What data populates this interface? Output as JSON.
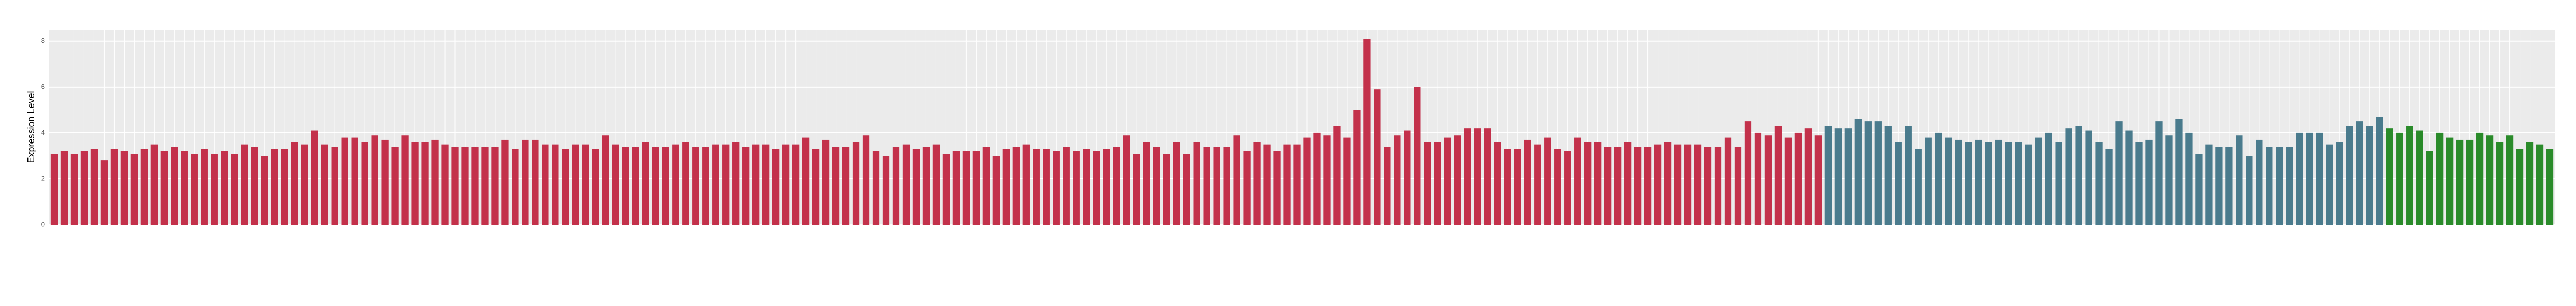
{
  "chart_data": {
    "type": "bar",
    "y_label": "Expression Level",
    "ylim": [
      0,
      8.5
    ],
    "yticks": [
      0,
      2,
      4,
      6,
      8
    ],
    "grid": true,
    "series": [
      {
        "color": "#c3314b",
        "values": [
          3.1,
          3.2,
          3.1,
          3.2,
          3.3,
          2.8,
          3.3,
          3.2,
          3.1,
          3.3,
          3.5,
          3.2,
          3.4,
          3.2,
          3.1,
          3.3,
          3.1,
          3.2,
          3.1,
          3.5,
          3.4,
          3.0,
          3.3,
          3.3,
          3.6,
          3.5,
          4.1,
          3.5,
          3.4,
          3.8,
          3.8,
          3.6,
          3.9,
          3.7,
          3.4,
          3.9,
          3.6,
          3.6,
          3.7,
          3.5,
          3.4,
          3.4,
          3.4,
          3.4,
          3.4,
          3.7,
          3.3,
          3.7,
          3.7,
          3.5,
          3.5,
          3.3,
          3.5,
          3.5,
          3.3,
          3.9,
          3.5,
          3.4,
          3.4,
          3.6,
          3.4,
          3.4,
          3.5,
          3.6,
          3.4,
          3.4,
          3.5,
          3.5,
          3.6,
          3.4,
          3.5,
          3.5,
          3.3,
          3.5,
          3.5,
          3.8,
          3.3,
          3.7,
          3.4,
          3.4,
          3.6,
          3.9,
          3.2,
          3.0,
          3.4,
          3.5,
          3.3,
          3.4,
          3.5,
          3.1,
          3.2,
          3.2,
          3.2,
          3.4,
          3.0,
          3.3,
          3.4,
          3.5,
          3.3,
          3.3,
          3.2,
          3.4,
          3.2,
          3.3,
          3.2,
          3.3,
          3.4,
          3.9,
          3.1,
          3.6,
          3.4,
          3.1,
          3.6,
          3.1,
          3.6,
          3.4,
          3.4,
          3.4,
          3.9,
          3.2,
          3.6,
          3.5,
          3.2,
          3.5,
          3.5,
          3.8,
          4.0,
          3.9,
          4.3,
          3.8,
          5.0,
          8.1,
          5.9,
          3.4,
          3.9,
          4.1,
          6.0,
          3.6,
          3.6,
          3.8,
          3.9,
          4.2,
          4.2,
          4.2,
          3.6,
          3.3,
          3.3,
          3.7,
          3.5,
          3.8,
          3.3,
          3.2,
          3.8,
          3.6,
          3.6,
          3.4,
          3.4,
          3.6,
          3.4,
          3.4,
          3.5,
          3.6,
          3.5,
          3.5,
          3.5,
          3.4,
          3.4,
          3.8,
          3.4,
          4.5,
          4.0,
          3.9,
          4.3,
          3.8,
          4.0,
          4.2,
          3.9
        ]
      },
      {
        "color": "#4a7b8d",
        "values": [
          4.3,
          4.2,
          4.2,
          4.6,
          4.5,
          4.5,
          4.3,
          3.6,
          4.3,
          3.3,
          3.8,
          4.0,
          3.8,
          3.7,
          3.6,
          3.7,
          3.6,
          3.7,
          3.6,
          3.6,
          3.5,
          3.8,
          4.0,
          3.6,
          4.2,
          4.3,
          4.1,
          3.6,
          3.3,
          4.5,
          4.1,
          3.6,
          3.7,
          4.5,
          3.9,
          4.6,
          4.0,
          3.1,
          3.5,
          3.4,
          3.4,
          3.9,
          3.0,
          3.7,
          3.4,
          3.4,
          3.4,
          4.0,
          4.0,
          4.0,
          3.5,
          3.6,
          4.3,
          4.5,
          4.3,
          4.7
        ]
      },
      {
        "color": "#2a8b2a",
        "values": [
          4.2,
          4.0,
          4.3,
          4.1,
          3.2,
          4.0,
          3.8,
          3.7,
          3.7,
          4.0,
          3.9,
          3.6,
          3.9,
          3.3,
          3.6,
          3.5,
          3.3
        ]
      }
    ]
  }
}
